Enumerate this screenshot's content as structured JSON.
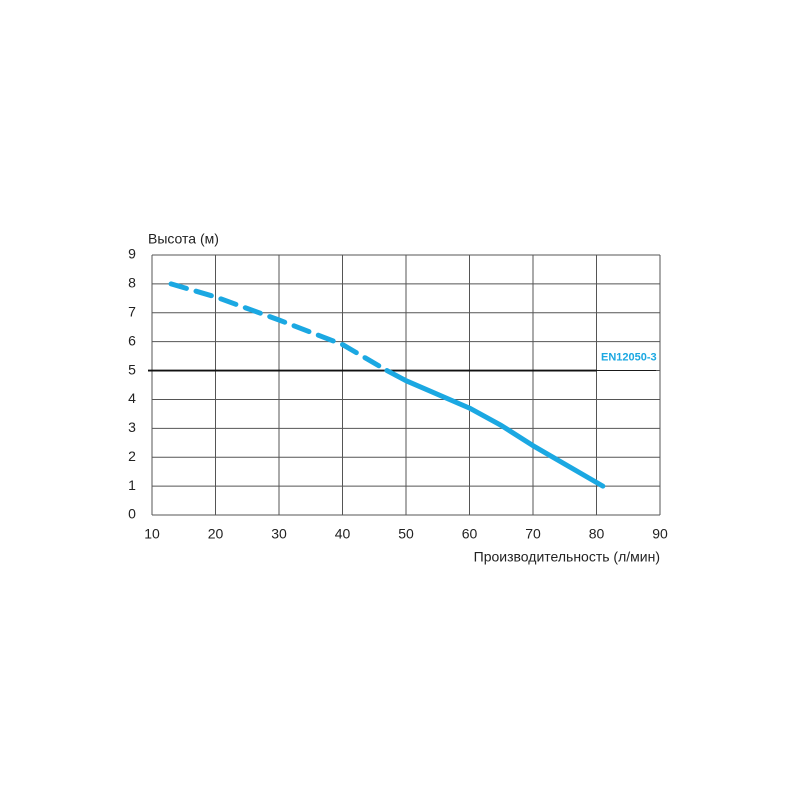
{
  "chart_data": {
    "type": "line",
    "y_label": "Высота (м)",
    "x_label": "Производительность (л/мин)",
    "xlim": [
      10,
      90
    ],
    "xticks": [
      10,
      20,
      30,
      40,
      50,
      60,
      70,
      80,
      90
    ],
    "ylim": [
      0,
      9
    ],
    "yticks": [
      0,
      1,
      2,
      3,
      4,
      5,
      6,
      7,
      8,
      9
    ],
    "grid": true,
    "series": [
      {
        "color": "#1ba8e2",
        "dashed": true,
        "x": [
          13,
          20,
          30,
          40,
          47
        ],
        "values": [
          8,
          7.55,
          6.75,
          5.9,
          5
        ]
      },
      {
        "color": "#1ba8e2",
        "dashed": false,
        "x": [
          47,
          50,
          60,
          65,
          70,
          81
        ],
        "values": [
          5,
          4.65,
          3.7,
          3.1,
          2.4,
          1
        ]
      }
    ],
    "reference_line": {
      "label": "EN12050-3",
      "y": 5,
      "color": "#1ba8e2"
    }
  }
}
